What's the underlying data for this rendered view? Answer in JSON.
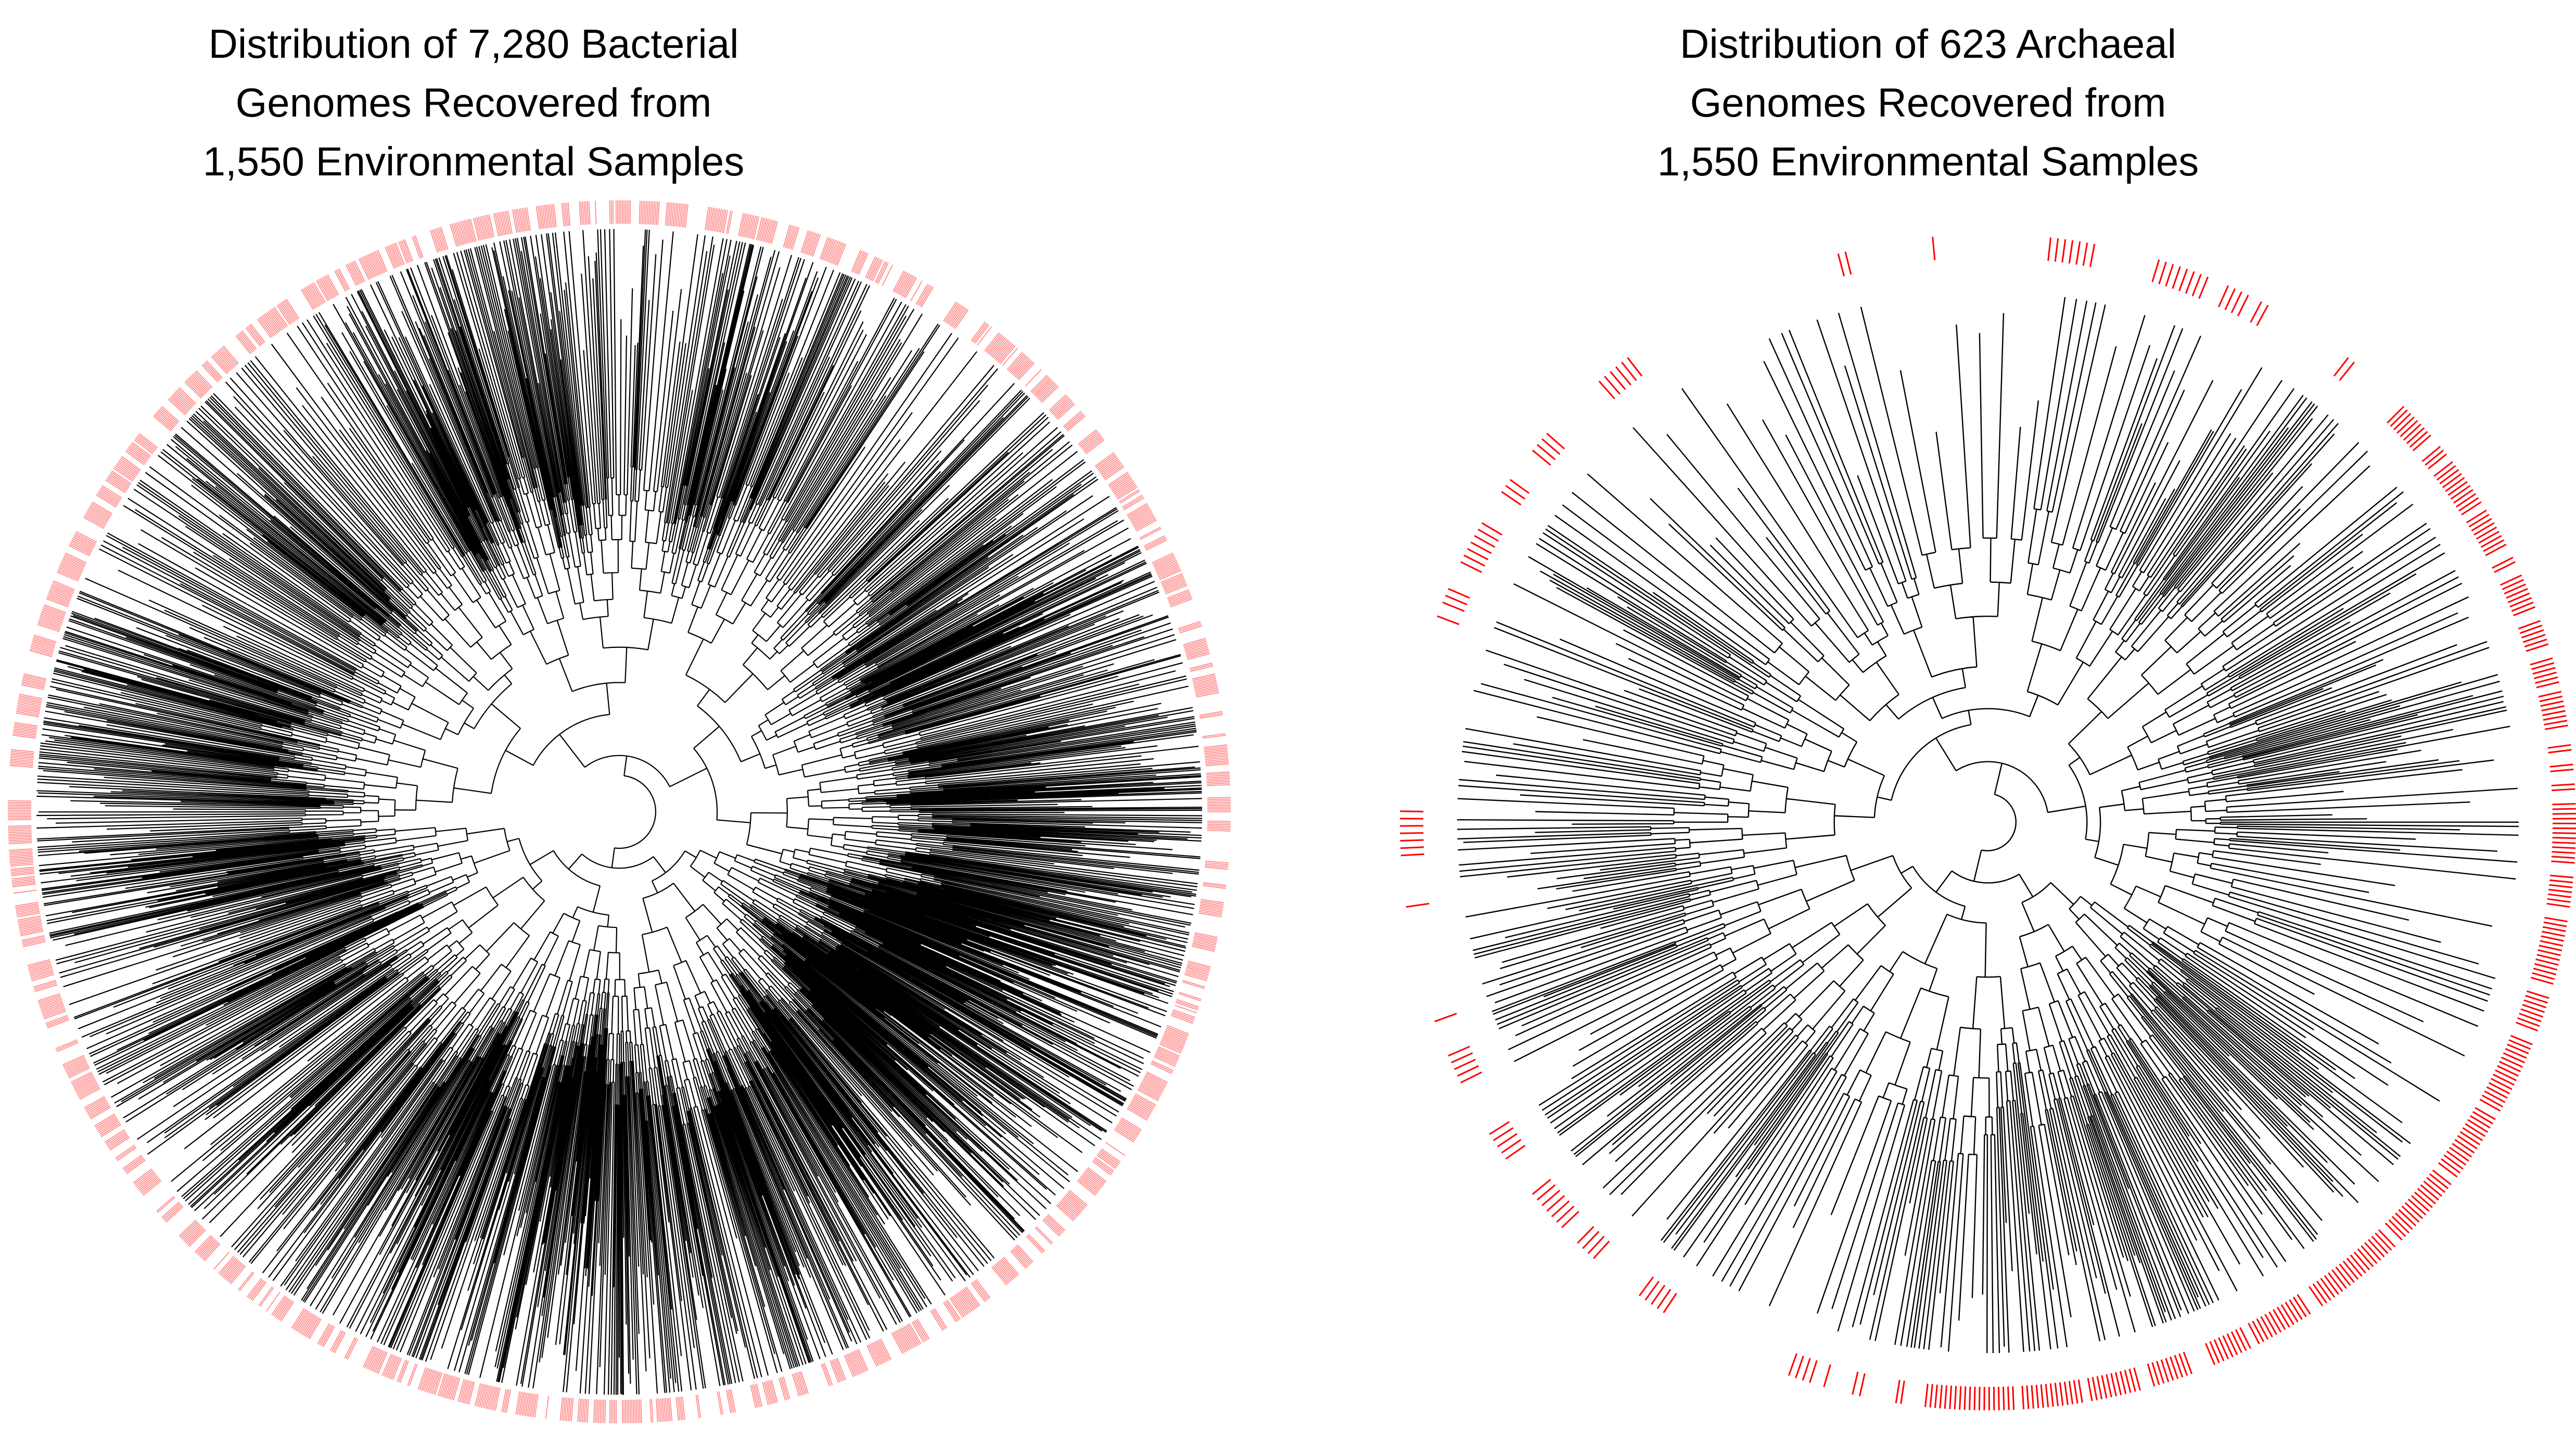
{
  "figures": [
    {
      "id": "bacteria",
      "title_lines": [
        "Distribution of 7,280 Bacterial",
        "Genomes Recovered from",
        "1,550 Environmental Samples"
      ],
      "genome_count": 7280,
      "sample_count": 1550,
      "domain_group": "Bacterial",
      "tree_layout": "circular",
      "branch_color": "#000000",
      "ring_color": "#ff7f7f",
      "ring_description": "outer ring marks genomes recovered from environmental samples"
    },
    {
      "id": "archaea",
      "title_lines": [
        "Distribution of 623 Archaeal",
        "Genomes Recovered from",
        "1,550 Environmental Samples"
      ],
      "genome_count": 623,
      "sample_count": 1550,
      "domain_group": "Archaeal",
      "tree_layout": "circular",
      "branch_color": "#000000",
      "ring_color": "#ff0000",
      "ring_description": "outer ring marks genomes recovered from environmental samples"
    }
  ]
}
